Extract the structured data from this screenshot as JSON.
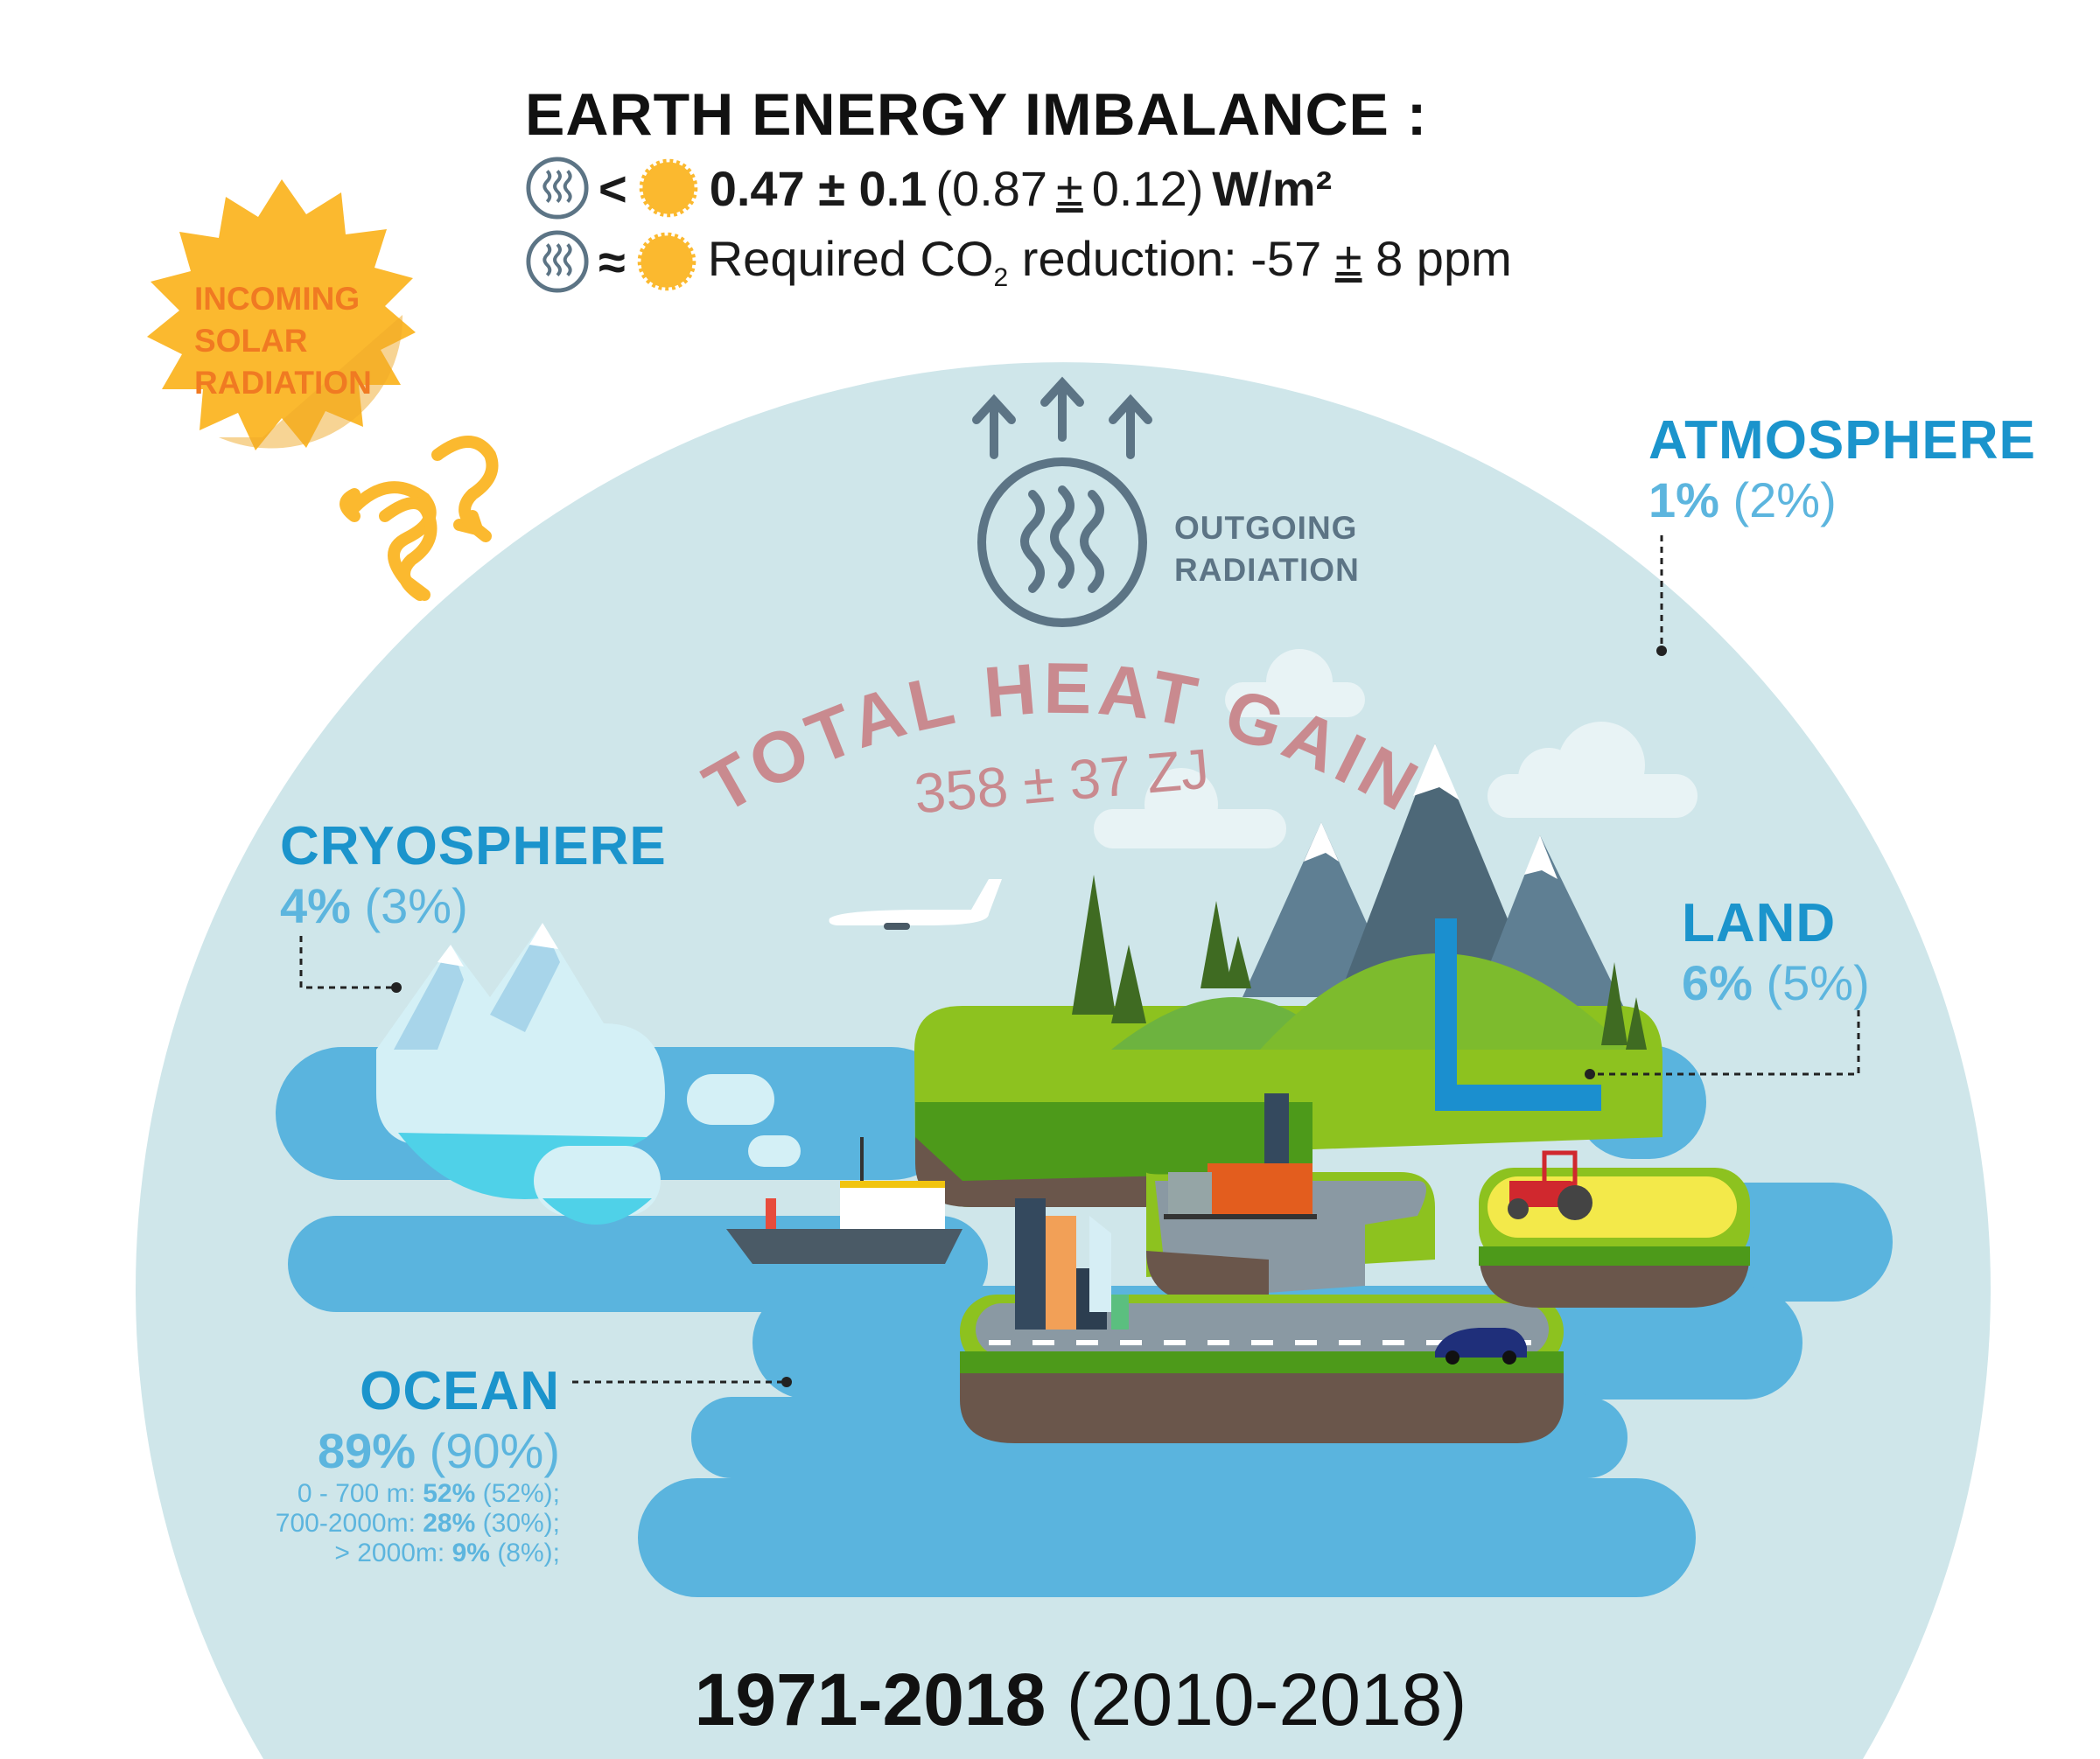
{
  "header": {
    "title": "EARTH ENERGY IMBALANCE :",
    "line1": {
      "symbol": "<",
      "value": "0.47 ± 0.1",
      "paren": "(0.87",
      "pm": "±",
      "paren_end": "0.12)",
      "unit": "W/m²"
    },
    "line2": {
      "symbol": "≈",
      "text": "Required CO",
      "subscript": "2",
      "text2": "reduction: -57",
      "pm": "±",
      "text3": "8 ppm"
    }
  },
  "incoming": {
    "line1": "INCOMING",
    "line2": "SOLAR",
    "line3": "RADIATION"
  },
  "outgoing": {
    "line1": "OUTGOING",
    "line2": "RADIATION"
  },
  "total": {
    "label": "TOTAL HEAT GAIN",
    "value": "358 ± 37 ZJ"
  },
  "atmosphere": {
    "label": "ATMOSPHERE",
    "pct": "1%",
    "pct_recent": "(2%)"
  },
  "cryosphere": {
    "label": "CRYOSPHERE",
    "pct": "4%",
    "pct_recent": "(3%)"
  },
  "land": {
    "label": "LAND",
    "pct": "6%",
    "pct_recent": "(5%)"
  },
  "ocean": {
    "label": "OCEAN",
    "pct": "89%",
    "pct_recent": "(90%)",
    "layers": [
      {
        "depth": "0 - 700 m:",
        "pct": "52%",
        "recent": "(52%);"
      },
      {
        "depth": "700-2000m:",
        "pct": "28%",
        "recent": "(30%);"
      },
      {
        "depth": "> 2000m:",
        "pct": "9%",
        "recent": "(8%);"
      }
    ]
  },
  "period": {
    "main": "1971-2018",
    "recent": "(2010-2018)"
  },
  "colors": {
    "circle": "#cfe6ea",
    "ocean": "#5ab4de",
    "label": "#1b94cc",
    "pct": "#5cb5de",
    "sun": "#fbb92f",
    "heat": "#c98a8f",
    "outgoing": "#5c7485",
    "grass": "#8dc21f"
  }
}
